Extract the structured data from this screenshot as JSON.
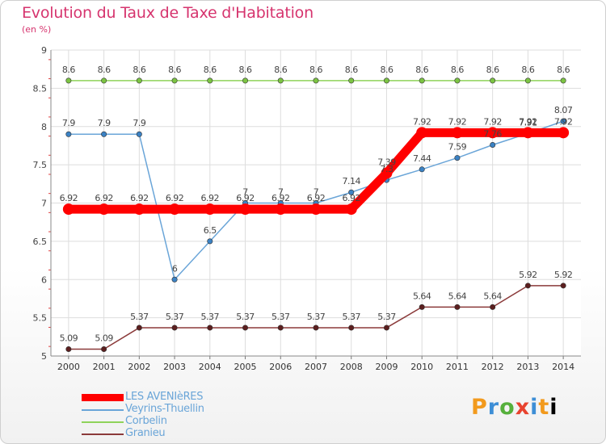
{
  "chart_data": {
    "type": "line",
    "title": "Evolution du Taux de Taxe d'Habitation",
    "subtitle": "(en %)",
    "xlabel": "",
    "ylabel": "",
    "x": [
      "2000",
      "2001",
      "2002",
      "2003",
      "2004",
      "2005",
      "2006",
      "2007",
      "2008",
      "2009",
      "2010",
      "2011",
      "2012",
      "2013",
      "2014"
    ],
    "ylim": [
      5,
      9
    ],
    "yticks": [
      "5",
      "5.5",
      "6",
      "6.5",
      "7",
      "7.5",
      "8",
      "8.5",
      "9"
    ],
    "grid": true,
    "legend_position": "bottom-left",
    "series": [
      {
        "name": "LES AVENIèRES",
        "color": "#ff0000",
        "values": [
          6.92,
          6.92,
          6.92,
          6.92,
          6.92,
          6.92,
          6.92,
          6.92,
          6.92,
          7.39,
          7.92,
          7.92,
          7.92,
          7.92,
          7.92
        ],
        "labels": [
          "6.92",
          "6.92",
          "6.92",
          "6.92",
          "6.92",
          "6.92",
          "6.92",
          "6.92",
          "6.92",
          "7.39",
          "7.92",
          "7.92",
          "7.92",
          "7.92",
          "7.92"
        ]
      },
      {
        "name": "Veyrins-Thuellin",
        "color": "#6aa5d8",
        "values": [
          7.9,
          7.9,
          7.9,
          6,
          6.5,
          7,
          7,
          7,
          7.14,
          7.3,
          7.44,
          7.59,
          7.76,
          7.91,
          8.07
        ],
        "labels": [
          "7.9",
          "7.9",
          "7.9",
          "6",
          "6.5",
          "7",
          "7",
          "7",
          "7.14",
          "7.3",
          "7.44",
          "7.59",
          "7.76",
          "7.91",
          "8.07"
        ]
      },
      {
        "name": "Corbelin",
        "color": "#8fd35a",
        "values": [
          8.6,
          8.6,
          8.6,
          8.6,
          8.6,
          8.6,
          8.6,
          8.6,
          8.6,
          8.6,
          8.6,
          8.6,
          8.6,
          8.6,
          8.6
        ],
        "labels": [
          "8.6",
          "8.6",
          "8.6",
          "8.6",
          "8.6",
          "8.6",
          "8.6",
          "8.6",
          "8.6",
          "8.6",
          "8.6",
          "8.6",
          "8.6",
          "8.6",
          "8.6"
        ]
      },
      {
        "name": "Granieu",
        "color": "#8b3a3a",
        "values": [
          5.09,
          5.09,
          5.37,
          5.37,
          5.37,
          5.37,
          5.37,
          5.37,
          5.37,
          5.37,
          5.64,
          5.64,
          5.64,
          5.92,
          5.92
        ],
        "labels": [
          "5.09",
          "5.09",
          "5.37",
          "5.37",
          "5.37",
          "5.37",
          "5.37",
          "5.37",
          "5.37",
          "5.37",
          "5.64",
          "5.64",
          "5.64",
          "5.92",
          "5.92"
        ]
      }
    ]
  },
  "brand": {
    "letters": [
      "P",
      "r",
      "o",
      "x",
      "i",
      "t",
      "i"
    ]
  },
  "colors": {
    "title": "#d6346e",
    "axis": "#777777",
    "grid": "#dddddd"
  }
}
